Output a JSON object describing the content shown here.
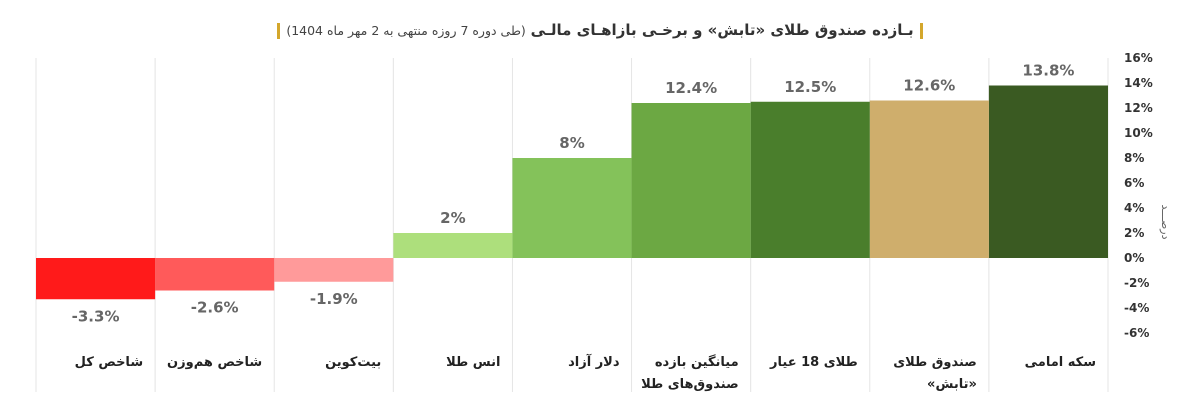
{
  "header": {
    "title": "بـازده صندوق طلای «تابش» و برخـی بازاهـای مالـی",
    "subtitle": "(طی دوره 7 روزه منتهی به 2 مهر ماه 1404)"
  },
  "chart_data": {
    "type": "bar",
    "title": "بـازده صندوق طلای «تابش» و برخـی بازاهـای مالـی",
    "subtitle": "(طی دوره 7 روزه منتهی به 2 مهر ماه 1404)",
    "ylabel": "درصـــد",
    "ylim": [
      -6,
      16
    ],
    "yticks": [
      16,
      14,
      12,
      10,
      8,
      6,
      4,
      2,
      0,
      -2,
      -4,
      -6
    ],
    "tick_format": "{v}%",
    "grid": false,
    "legend": "none",
    "categories": [
      [
        "سکه امامی"
      ],
      [
        "صندوق طلای",
        "«تابش»"
      ],
      [
        "طلای 18 عیار"
      ],
      [
        "میانگین بازده",
        "صندوق‌های طلا"
      ],
      [
        "دلار آزاد"
      ],
      [
        "انس طلا"
      ],
      [
        "بیت‌کوین"
      ],
      [
        "شاخص هم‌وزن"
      ],
      [
        "شاخص کل"
      ]
    ],
    "values": [
      13.8,
      12.6,
      12.5,
      12.4,
      8,
      2,
      -1.9,
      -2.6,
      -3.3
    ],
    "value_labels": [
      "13.8%",
      "12.6%",
      "12.5%",
      "12.4%",
      "8%",
      "2%",
      "-1.9%",
      "-2.6%",
      "-3.3%"
    ],
    "colors": [
      "#3a5a22",
      "#cfae6c",
      "#4a7e2c",
      "#6ca843",
      "#84c25a",
      "#addf7c",
      "#ff9a9a",
      "#ff5a5a",
      "#ff1a1a"
    ]
  }
}
